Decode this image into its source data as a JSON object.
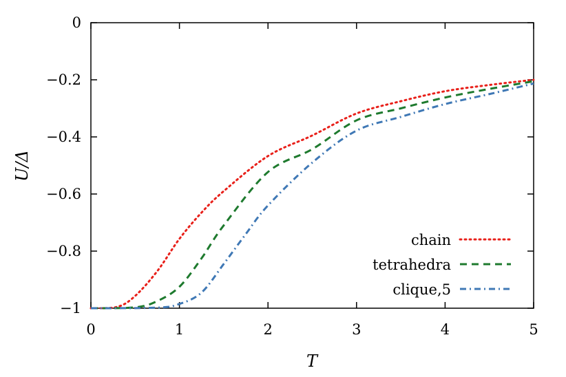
{
  "chart_data": {
    "type": "line",
    "title": "",
    "xlabel": "T",
    "ylabel": "U/Δ",
    "xlim": [
      0,
      5
    ],
    "ylim": [
      -1,
      0
    ],
    "xticks": [
      "0",
      "1",
      "2",
      "3",
      "4",
      "5"
    ],
    "yticks": [
      "0",
      "−0.2",
      "−0.4",
      "−0.6",
      "−0.8",
      "−1"
    ],
    "grid": false,
    "legend_position": "bottom-right",
    "series": [
      {
        "name": "chain",
        "color": "#e8201a",
        "style": "dotted",
        "x": [
          0,
          0.3,
          0.5,
          0.75,
          1,
          1.25,
          1.5,
          2,
          2.5,
          3,
          3.5,
          4,
          4.5,
          5
        ],
        "y": [
          -1,
          -0.995,
          -0.957,
          -0.87,
          -0.757,
          -0.665,
          -0.59,
          -0.467,
          -0.395,
          -0.318,
          -0.275,
          -0.24,
          -0.218,
          -0.2
        ]
      },
      {
        "name": "tetrahedra",
        "color": "#1e7a2e",
        "style": "dashed",
        "x": [
          0,
          0.5,
          0.75,
          1,
          1.25,
          1.5,
          2,
          2.5,
          3,
          3.5,
          4,
          4.5,
          5
        ],
        "y": [
          -1,
          -0.997,
          -0.975,
          -0.925,
          -0.825,
          -0.71,
          -0.523,
          -0.443,
          -0.342,
          -0.3,
          -0.262,
          -0.232,
          -0.205
        ]
      },
      {
        "name": "clique,5",
        "color": "#3f78b5",
        "style": "dashdot",
        "x": [
          0,
          0.75,
          1,
          1.25,
          1.5,
          1.75,
          2,
          2.5,
          3,
          3.5,
          4,
          4.5,
          5
        ],
        "y": [
          -1,
          -0.998,
          -0.985,
          -0.945,
          -0.845,
          -0.74,
          -0.64,
          -0.49,
          -0.378,
          -0.33,
          -0.285,
          -0.25,
          -0.213
        ]
      }
    ]
  }
}
